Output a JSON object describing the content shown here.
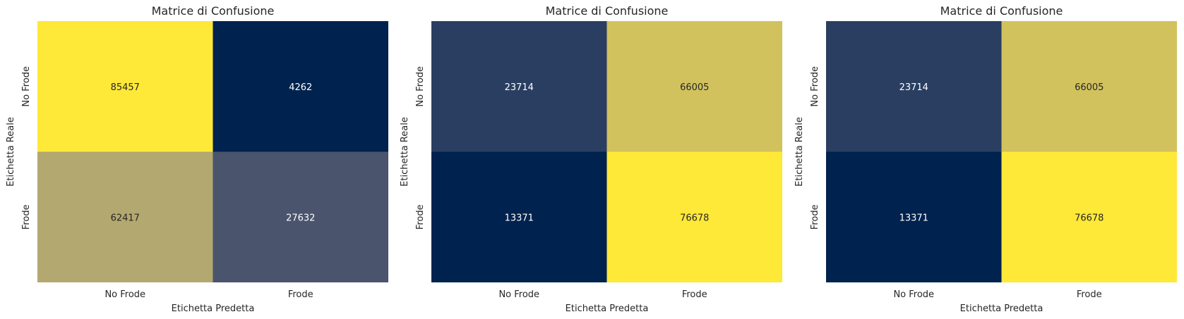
{
  "chart_data": [
    {
      "type": "heatmap",
      "title": "Matrice di Confusione",
      "xlabel": "Etichetta Predetta",
      "ylabel": "Etichetta Reale",
      "x_categories": [
        "No Frode",
        "Frode"
      ],
      "y_categories": [
        "No Frode",
        "Frode"
      ],
      "values": [
        [
          85457,
          4262
        ],
        [
          62417,
          27632
        ]
      ],
      "colormap": "cividis",
      "colorbar": false,
      "grid": false
    },
    {
      "type": "heatmap",
      "title": "Matrice di Confusione",
      "xlabel": "Etichetta Predetta",
      "ylabel": "Etichetta Reale",
      "x_categories": [
        "No Frode",
        "Frode"
      ],
      "y_categories": [
        "No Frode",
        "Frode"
      ],
      "values": [
        [
          23714,
          66005
        ],
        [
          13371,
          76678
        ]
      ],
      "colormap": "cividis",
      "colorbar": false,
      "grid": false
    },
    {
      "type": "heatmap",
      "title": "Matrice di Confusione",
      "xlabel": "Etichetta Predetta",
      "ylabel": "Etichetta Reale",
      "x_categories": [
        "No Frode",
        "Frode"
      ],
      "y_categories": [
        "No Frode",
        "Frode"
      ],
      "values": [
        [
          23714,
          66005
        ],
        [
          13371,
          76678
        ]
      ],
      "colormap": "cividis",
      "colorbar": false,
      "grid": false
    }
  ]
}
